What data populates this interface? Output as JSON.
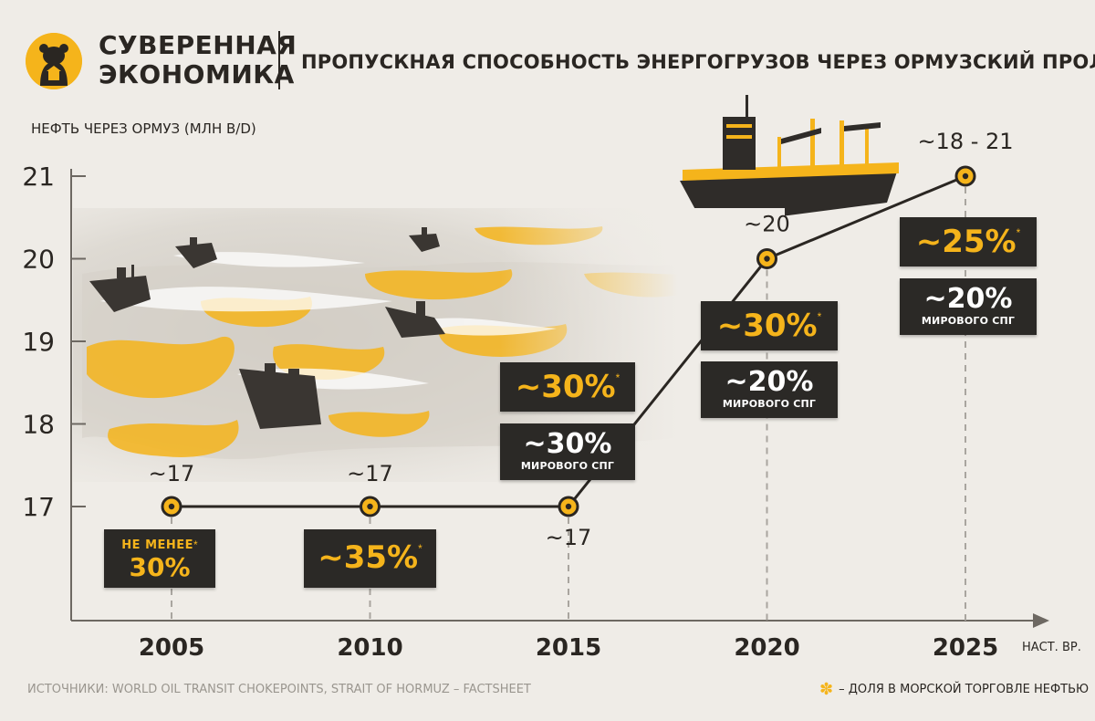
{
  "brand": {
    "line1": "СУВЕРЕННАЯ",
    "line2": "ЭКОНОМИКА"
  },
  "headline": "ПРОПУСКНАЯ СПОСОБНОСТЬ ЭНЕРГОГРУЗОВ ЧЕРЕЗ ОРМУЗСКИЙ ПРОЛИВ",
  "source": "ИСТОЧНИКИ: WORLD OIL TRANSIT CHOKEPOINTS, STRAIT OF HORMUZ – FACTSHEET",
  "legend": {
    "text": "– ДОЛЯ В МОРСКОЙ ТОРГОВЛЕ НЕФТЬЮ"
  },
  "x_unit": "НАСТ. ВР.",
  "colors": {
    "accent": "#f5b41b",
    "dark": "#2b2926",
    "background": "#efece7",
    "grid": "#a9a59f"
  },
  "chart_data": {
    "type": "line",
    "ylabel": "НЕФТЬ ЧЕРЕЗ ОРМУЗ (МЛН В/D)",
    "x": [
      "2005",
      "2010",
      "2015",
      "2020",
      "2025"
    ],
    "yticks": [
      "17",
      "18",
      "19",
      "20",
      "21"
    ],
    "ylim": [
      16,
      21
    ],
    "series": [
      {
        "values": [
          17,
          17,
          17,
          20,
          21
        ]
      }
    ],
    "point_labels": [
      "~17",
      "~17",
      "~17",
      "~20",
      "~18 - 21"
    ],
    "oil_share": [
      "НЕ МЕНЕЕ",
      "30%",
      "~35%",
      "~30%",
      "~30%",
      "~25%"
    ],
    "lng_share": [
      "~30%",
      "~20%",
      "~20%"
    ],
    "lng_label": "МИРОВОГО СПГ",
    "star": "*"
  }
}
